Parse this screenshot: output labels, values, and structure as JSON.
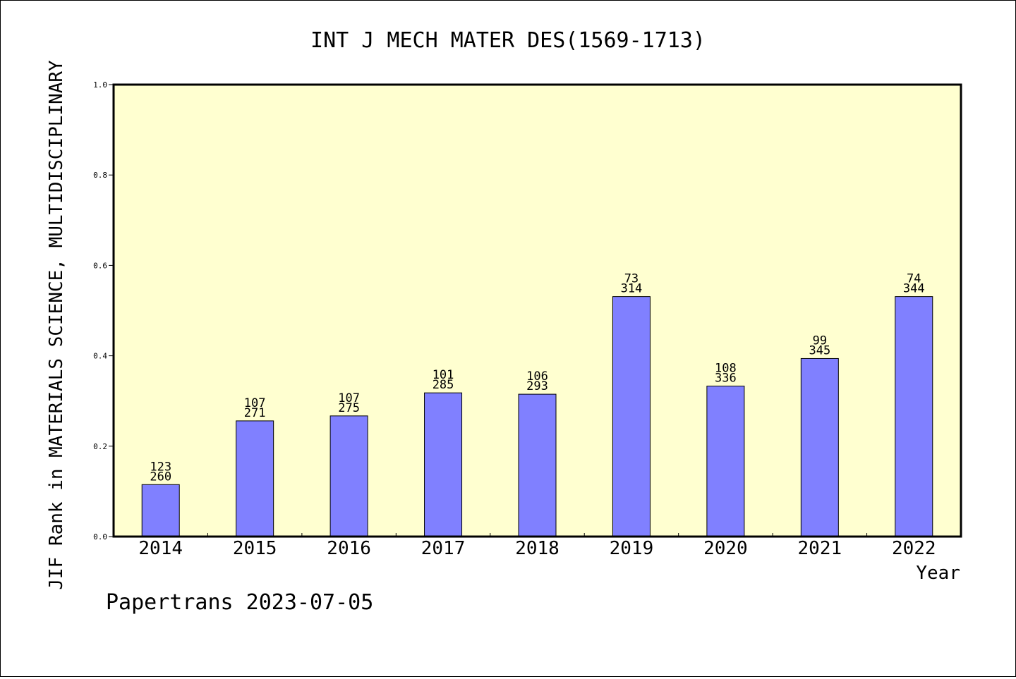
{
  "chart_data": {
    "type": "bar",
    "title": "INT J MECH MATER DES(1569-1713)",
    "xlabel": "Year",
    "ylabel": "JIF Rank in MATERIALS SCIENCE, MULTIDISCIPLINARY",
    "ylim": [
      0.0,
      1.0
    ],
    "yticks": [
      "0.0",
      "0.2",
      "0.4",
      "0.6",
      "0.8",
      "1.0"
    ],
    "grid": false,
    "categories": [
      "2014",
      "2015",
      "2016",
      "2017",
      "2018",
      "2019",
      "2020",
      "2021",
      "2022"
    ],
    "values": [
      0.115,
      0.256,
      0.267,
      0.318,
      0.315,
      0.531,
      0.333,
      0.394,
      0.531
    ],
    "ranks": [
      "123",
      "107",
      "107",
      "101",
      "106",
      "73",
      "108",
      "99",
      "74"
    ],
    "totals": [
      "260",
      "271",
      "275",
      "285",
      "293",
      "314",
      "336",
      "345",
      "344"
    ],
    "colors": {
      "plot_background": "#ffffd0",
      "bar_fill": "#8080ff",
      "bar_stroke": "#000000"
    }
  },
  "footer": {
    "text": "Papertrans 2023-07-05"
  }
}
